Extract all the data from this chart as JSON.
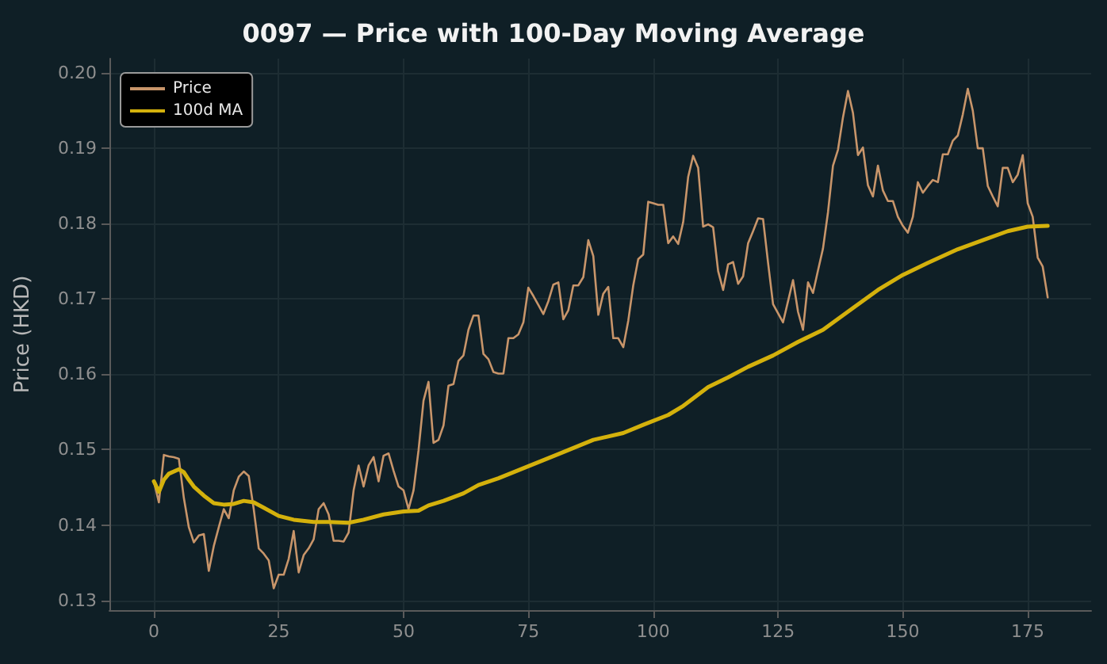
{
  "chart_data": {
    "type": "line",
    "title": "0097 — Price with 100-Day Moving Average",
    "ylabel": "Price (HKD)",
    "x": [
      0,
      1,
      2,
      3,
      4,
      5,
      6,
      7,
      8,
      9,
      10,
      11,
      12,
      13,
      14,
      15,
      16,
      17,
      18,
      19,
      20,
      21,
      22,
      23,
      24,
      25,
      26,
      27,
      28,
      29,
      30,
      31,
      32,
      33,
      34,
      35,
      36,
      37,
      38,
      39,
      40,
      41,
      42,
      43,
      44,
      45,
      46,
      47,
      48,
      49,
      50,
      51,
      52,
      53,
      54,
      55,
      56,
      57,
      58,
      59,
      60,
      61,
      62,
      63,
      64,
      65,
      66,
      67,
      68,
      69,
      70,
      71,
      72,
      73,
      74,
      75,
      76,
      77,
      78,
      79,
      80,
      81,
      82,
      83,
      84,
      85,
      86,
      87,
      88,
      89,
      90,
      91,
      92,
      93,
      94,
      95,
      96,
      97,
      98,
      99,
      100,
      101,
      102,
      103,
      104,
      105,
      106,
      107,
      108,
      109,
      110,
      111,
      112,
      113,
      114,
      115,
      116,
      117,
      118,
      119,
      120,
      121,
      122,
      123,
      124,
      125,
      126,
      127,
      128,
      129,
      130,
      131,
      132,
      133,
      134,
      135,
      136,
      137,
      138,
      139,
      140,
      141,
      142,
      143,
      144,
      145,
      146,
      147,
      148,
      149,
      150,
      151,
      152,
      153,
      154,
      155,
      156,
      157,
      158,
      159,
      160,
      161,
      162,
      163,
      164,
      165,
      166,
      167,
      168,
      169,
      170,
      171,
      172,
      173,
      174,
      175,
      176,
      177,
      178,
      179
    ],
    "series": [
      {
        "name": "Price",
        "color": "#c8956a",
        "values": [
          0.1458,
          0.143,
          0.1493,
          0.1491,
          0.149,
          0.1488,
          0.1436,
          0.1397,
          0.1377,
          0.1386,
          0.1388,
          0.1339,
          0.1372,
          0.1397,
          0.1421,
          0.1409,
          0.1446,
          0.1464,
          0.1471,
          0.1465,
          0.1421,
          0.1369,
          0.1362,
          0.1353,
          0.1316,
          0.1334,
          0.1334,
          0.1355,
          0.1392,
          0.1337,
          0.136,
          0.1369,
          0.1381,
          0.1421,
          0.1429,
          0.1414,
          0.1379,
          0.1379,
          0.1378,
          0.139,
          0.1446,
          0.1479,
          0.1451,
          0.1479,
          0.149,
          0.1458,
          0.1492,
          0.1495,
          0.1472,
          0.1451,
          0.1446,
          0.1421,
          0.1446,
          0.1499,
          0.1565,
          0.159,
          0.1509,
          0.1513,
          0.1532,
          0.1585,
          0.1587,
          0.1618,
          0.1625,
          0.1659,
          0.1678,
          0.1678,
          0.1627,
          0.162,
          0.1603,
          0.1601,
          0.1601,
          0.1648,
          0.1648,
          0.1653,
          0.1669,
          0.1715,
          0.1704,
          0.1692,
          0.168,
          0.1697,
          0.1719,
          0.1722,
          0.1673,
          0.1685,
          0.1718,
          0.1718,
          0.1729,
          0.1778,
          0.1757,
          0.1679,
          0.1707,
          0.1716,
          0.1648,
          0.1648,
          0.1636,
          0.1671,
          0.1718,
          0.1753,
          0.1759,
          0.1829,
          0.1827,
          0.1825,
          0.1825,
          0.1774,
          0.1783,
          0.1773,
          0.1802,
          0.1862,
          0.189,
          0.1874,
          0.1796,
          0.1799,
          0.1795,
          0.1737,
          0.1712,
          0.1746,
          0.1749,
          0.172,
          0.173,
          0.1774,
          0.179,
          0.1807,
          0.1806,
          0.1748,
          0.1693,
          0.1681,
          0.1669,
          0.1697,
          0.1725,
          0.1683,
          0.1659,
          0.1722,
          0.1708,
          0.1738,
          0.1767,
          0.1815,
          0.1877,
          0.1898,
          0.1941,
          0.1976,
          0.1947,
          0.1891,
          0.1901,
          0.1851,
          0.1836,
          0.1877,
          0.1844,
          0.183,
          0.183,
          0.1809,
          0.1797,
          0.1788,
          0.1809,
          0.1855,
          0.1841,
          0.185,
          0.1858,
          0.1855,
          0.1892,
          0.1892,
          0.191,
          0.1917,
          0.1945,
          0.1979,
          0.195,
          0.19,
          0.19,
          0.185,
          0.1836,
          0.1823,
          0.1874,
          0.1874,
          0.1855,
          0.1865,
          0.1891,
          0.1827,
          0.1809,
          0.1755,
          0.1743,
          0.1702
        ]
      },
      {
        "name": "100d MA",
        "color": "#d4b10c",
        "x": [
          0,
          1,
          2,
          3,
          5,
          6,
          7,
          8,
          10,
          12,
          14,
          16,
          18,
          20,
          22,
          25,
          28,
          32,
          35,
          39,
          42,
          46,
          50,
          53,
          55,
          58,
          62,
          65,
          69,
          75,
          81,
          88,
          94,
          98,
          103,
          106,
          111,
          115,
          119,
          124,
          129,
          134,
          140,
          145,
          150,
          155,
          161,
          166,
          171,
          175,
          179
        ],
        "values": [
          0.1458,
          0.1444,
          0.146,
          0.1468,
          0.1474,
          0.147,
          0.146,
          0.1451,
          0.1439,
          0.1429,
          0.1427,
          0.1428,
          0.1432,
          0.143,
          0.1423,
          0.1412,
          0.1407,
          0.1404,
          0.1404,
          0.1403,
          0.1407,
          0.1414,
          0.1418,
          0.1419,
          0.1426,
          0.1432,
          0.1442,
          0.1453,
          0.1462,
          0.1478,
          0.1494,
          0.1513,
          0.1522,
          0.1533,
          0.1546,
          0.1558,
          0.1583,
          0.1596,
          0.161,
          0.1625,
          0.1643,
          0.1659,
          0.1688,
          0.1712,
          0.1732,
          0.1748,
          0.1766,
          0.1778,
          0.179,
          0.1796,
          0.1797
        ]
      }
    ],
    "xlim": [
      -8.9,
      187.7
    ],
    "xticks": [
      0,
      25,
      50,
      75,
      100,
      125,
      150,
      175
    ],
    "ylim": [
      0.1287,
      0.2019
    ],
    "yticks": [
      0.13,
      0.14,
      0.15,
      0.16,
      0.17,
      0.18,
      0.19,
      {
        "value": 0.2,
        "label": "0.20"
      }
    ],
    "grid": true,
    "legend": "top left",
    "marker": "none",
    "line_style": "solid"
  }
}
